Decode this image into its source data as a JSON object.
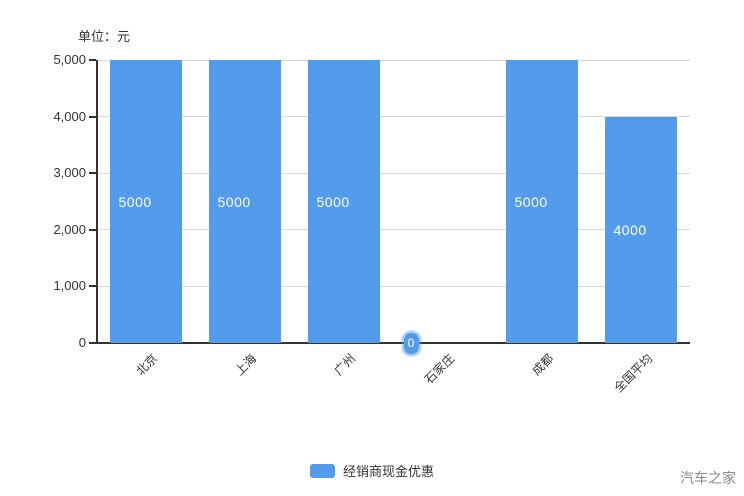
{
  "page": {
    "watermark": "汽车之家",
    "background": "#ffffff"
  },
  "chart_data": {
    "type": "bar",
    "title": "",
    "unit_label": "单位：元",
    "categories": [
      "北京",
      "上海",
      "广州",
      "石家庄",
      "成都",
      "全国平均"
    ],
    "values": [
      5000,
      5000,
      5000,
      0,
      5000,
      4000
    ],
    "bar_labels": [
      "5000",
      "5000",
      "5000",
      "0",
      "5000",
      "4000"
    ],
    "ylim": [
      0,
      5000
    ],
    "ytick_step": 1000,
    "ytick_labels": [
      "0",
      "1,000",
      "2,000",
      "3,000",
      "4,000",
      "5,000"
    ],
    "grid": true,
    "legend": {
      "label": "经销商现金优惠",
      "position": "bottom"
    },
    "colors": {
      "bar": "#529CEB",
      "axis": "#333333",
      "grid_line": "#d9d9d9",
      "tick_text": "#333333",
      "bar_label_text": "#ffffff",
      "zero_badge_halo": "rgba(82,156,235,0.45)"
    }
  }
}
